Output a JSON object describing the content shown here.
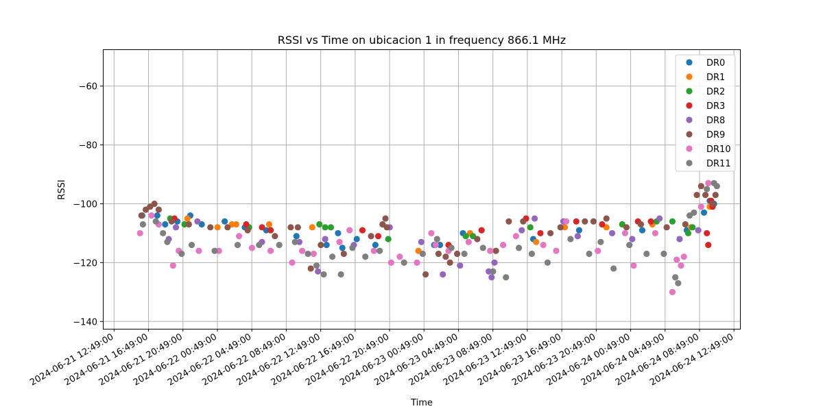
{
  "chart_data": {
    "type": "scatter",
    "title": "RSSI vs Time on ubicacion 1 in frequency 866.1 MHz",
    "xlabel": "Time",
    "ylabel": "RSSI",
    "x_axis_type": "datetime",
    "xlim": [
      "2024-06-21 11:31:00",
      "2024-06-24 13:31:00"
    ],
    "ylim": [
      -142.5,
      -47.5
    ],
    "x_ticks": [
      "2024-06-21 12:49:00",
      "2024-06-21 16:49:00",
      "2024-06-21 20:49:00",
      "2024-06-22 00:49:00",
      "2024-06-22 04:49:00",
      "2024-06-22 08:49:00",
      "2024-06-22 12:49:00",
      "2024-06-22 16:49:00",
      "2024-06-22 20:49:00",
      "2024-06-23 00:49:00",
      "2024-06-23 04:49:00",
      "2024-06-23 08:49:00",
      "2024-06-23 12:49:00",
      "2024-06-23 16:49:00",
      "2024-06-23 20:49:00",
      "2024-06-24 00:49:00",
      "2024-06-24 04:49:00",
      "2024-06-24 08:49:00",
      "2024-06-24 12:49:00"
    ],
    "y_ticks": [
      -140,
      -120,
      -100,
      -80,
      -60
    ],
    "grid": true,
    "legend_position": "top-right",
    "series": [
      {
        "name": "DR0",
        "color": "#1f77b4",
        "points": [
          [
            "2024-06-21 16:05:00",
            -104
          ],
          [
            "2024-06-21 17:50:00",
            -104
          ],
          [
            "2024-06-21 18:45:00",
            -107
          ],
          [
            "2024-06-21 20:10:00",
            -106
          ],
          [
            "2024-06-21 21:40:00",
            -104
          ],
          [
            "2024-06-21 23:00:00",
            -107
          ],
          [
            "2024-06-22 01:40:00",
            -106
          ],
          [
            "2024-06-22 04:00:00",
            -108
          ],
          [
            "2024-06-22 06:30:00",
            -109
          ],
          [
            "2024-06-22 10:00:00",
            -111
          ],
          [
            "2024-06-22 13:30:00",
            -114
          ],
          [
            "2024-06-22 14:50:00",
            -110
          ],
          [
            "2024-06-22 15:20:00",
            -115
          ],
          [
            "2024-06-22 17:00:00",
            -112
          ],
          [
            "2024-06-22 19:10:00",
            -114
          ],
          [
            "2024-06-23 02:00:00",
            -114
          ],
          [
            "2024-06-23 02:40:00",
            -114
          ],
          [
            "2024-06-23 05:20:00",
            -110
          ],
          [
            "2024-06-23 13:30:00",
            -112
          ],
          [
            "2024-06-23 18:50:00",
            -109
          ],
          [
            "2024-06-24 02:10:00",
            -109
          ],
          [
            "2024-06-24 07:20:00",
            -109
          ],
          [
            "2024-06-24 09:20:00",
            -103
          ],
          [
            "2024-06-24 10:00:00",
            -99
          ],
          [
            "2024-06-24 10:30:00",
            -100
          ]
        ]
      },
      {
        "name": "DR1",
        "color": "#ff7f0e",
        "points": [
          [
            "2024-06-21 21:20:00",
            -105
          ],
          [
            "2024-06-22 00:50:00",
            -108
          ],
          [
            "2024-06-22 02:30:00",
            -107
          ],
          [
            "2024-06-22 03:00:00",
            -107
          ],
          [
            "2024-06-22 06:50:00",
            -107
          ],
          [
            "2024-06-22 11:50:00",
            -108
          ],
          [
            "2024-06-23 00:10:00",
            -116
          ],
          [
            "2024-06-23 06:10:00",
            -110
          ],
          [
            "2024-06-23 13:50:00",
            -113
          ],
          [
            "2024-06-23 17:10:00",
            -108
          ],
          [
            "2024-06-23 22:00:00",
            -108
          ],
          [
            "2024-06-24 03:20:00",
            -107
          ],
          [
            "2024-06-24 07:50:00",
            -108
          ],
          [
            "2024-06-24 10:00:00",
            -101
          ]
        ]
      },
      {
        "name": "DR2",
        "color": "#2ca02c",
        "points": [
          [
            "2024-06-21 19:20:00",
            -105
          ],
          [
            "2024-06-21 21:00:00",
            -107
          ],
          [
            "2024-06-22 04:30:00",
            -108
          ],
          [
            "2024-06-22 12:40:00",
            -107
          ],
          [
            "2024-06-22 13:20:00",
            -108
          ],
          [
            "2024-06-22 14:00:00",
            -108
          ],
          [
            "2024-06-22 20:40:00",
            -112
          ],
          [
            "2024-06-23 05:40:00",
            -111
          ],
          [
            "2024-06-23 06:30:00",
            -111
          ],
          [
            "2024-06-23 13:10:00",
            -108
          ],
          [
            "2024-06-23 23:50:00",
            -107
          ],
          [
            "2024-06-24 03:50:00",
            -106
          ],
          [
            "2024-06-24 05:40:00",
            -106
          ],
          [
            "2024-06-24 07:30:00",
            -110
          ],
          [
            "2024-06-24 08:00:00",
            -108
          ]
        ]
      },
      {
        "name": "DR3",
        "color": "#d62728",
        "points": [
          [
            "2024-06-21 19:50:00",
            -105
          ],
          [
            "2024-06-22 04:10:00",
            -107
          ],
          [
            "2024-06-22 06:00:00",
            -108
          ],
          [
            "2024-06-22 07:00:00",
            -109
          ],
          [
            "2024-06-22 17:40:00",
            -109
          ],
          [
            "2024-06-22 19:30:00",
            -111
          ],
          [
            "2024-06-23 03:40:00",
            -114
          ],
          [
            "2024-06-23 07:30:00",
            -109
          ],
          [
            "2024-06-23 12:40:00",
            -105
          ],
          [
            "2024-06-23 14:20:00",
            -110
          ],
          [
            "2024-06-23 18:30:00",
            -106
          ],
          [
            "2024-06-23 21:30:00",
            -107
          ],
          [
            "2024-06-24 01:40:00",
            -106
          ],
          [
            "2024-06-24 03:10:00",
            -106
          ],
          [
            "2024-06-24 09:40:00",
            -110
          ],
          [
            "2024-06-24 09:50:00",
            -114
          ],
          [
            "2024-06-24 10:10:00",
            -99
          ],
          [
            "2024-06-24 10:20:00",
            -101
          ]
        ]
      },
      {
        "name": "DR8",
        "color": "#9467bd",
        "points": [
          [
            "2024-06-21 19:10:00",
            -112
          ],
          [
            "2024-06-21 20:00:00",
            -108
          ],
          [
            "2024-06-21 22:30:00",
            -106
          ],
          [
            "2024-06-22 06:00:00",
            -113
          ],
          [
            "2024-06-22 10:20:00",
            -113
          ],
          [
            "2024-06-22 12:30:00",
            -123
          ],
          [
            "2024-06-22 13:20:00",
            -112
          ],
          [
            "2024-06-22 16:40:00",
            -114
          ],
          [
            "2024-06-22 20:50:00",
            -108
          ],
          [
            "2024-06-23 00:30:00",
            -113
          ],
          [
            "2024-06-23 03:00:00",
            -124
          ],
          [
            "2024-06-23 05:00:00",
            -121
          ],
          [
            "2024-06-23 08:20:00",
            -123
          ],
          [
            "2024-06-23 08:40:00",
            -125
          ],
          [
            "2024-06-23 09:00:00",
            -120
          ],
          [
            "2024-06-23 12:10:00",
            -109
          ],
          [
            "2024-06-23 13:40:00",
            -105
          ],
          [
            "2024-06-23 17:00:00",
            -106
          ],
          [
            "2024-06-23 18:40:00",
            -111
          ],
          [
            "2024-06-23 22:40:00",
            -110
          ],
          [
            "2024-06-24 01:00:00",
            -112
          ],
          [
            "2024-06-24 04:10:00",
            -105
          ],
          [
            "2024-06-24 06:30:00",
            -112
          ],
          [
            "2024-06-24 08:40:00",
            -109
          ]
        ]
      },
      {
        "name": "DR9",
        "color": "#8c564b",
        "points": [
          [
            "2024-06-21 16:00:00",
            -104
          ],
          [
            "2024-06-21 16:30:00",
            -102
          ],
          [
            "2024-06-21 17:00:00",
            -101
          ],
          [
            "2024-06-21 17:30:00",
            -100
          ],
          [
            "2024-06-21 18:00:00",
            -102
          ],
          [
            "2024-06-21 19:30:00",
            -106
          ],
          [
            "2024-06-21 21:30:00",
            -107
          ],
          [
            "2024-06-22 00:00:00",
            -108
          ],
          [
            "2024-06-22 02:00:00",
            -108
          ],
          [
            "2024-06-22 04:20:00",
            -109
          ],
          [
            "2024-06-22 07:30:00",
            -111
          ],
          [
            "2024-06-22 09:20:00",
            -108
          ],
          [
            "2024-06-22 10:10:00",
            -108
          ],
          [
            "2024-06-22 11:40:00",
            -122
          ],
          [
            "2024-06-22 12:50:00",
            -114
          ],
          [
            "2024-06-22 15:30:00",
            -117
          ],
          [
            "2024-06-22 18:40:00",
            -111
          ],
          [
            "2024-06-22 20:00:00",
            -107
          ],
          [
            "2024-06-22 20:20:00",
            -105
          ],
          [
            "2024-06-22 20:30:00",
            -108
          ],
          [
            "2024-06-23 01:00:00",
            -124
          ],
          [
            "2024-06-23 02:30:00",
            -117
          ],
          [
            "2024-06-23 03:20:00",
            -118
          ],
          [
            "2024-06-23 03:50:00",
            -120
          ],
          [
            "2024-06-23 04:40:00",
            -117
          ],
          [
            "2024-06-23 07:00:00",
            -112
          ],
          [
            "2024-06-23 09:10:00",
            -116
          ],
          [
            "2024-06-23 10:40:00",
            -106
          ],
          [
            "2024-06-23 12:20:00",
            -106
          ],
          [
            "2024-06-23 15:30:00",
            -110
          ],
          [
            "2024-06-23 16:40:00",
            -108
          ],
          [
            "2024-06-23 19:30:00",
            -106
          ],
          [
            "2024-06-23 20:30:00",
            -106
          ],
          [
            "2024-06-23 22:00:00",
            -105
          ],
          [
            "2024-06-24 00:20:00",
            -108
          ],
          [
            "2024-06-24 02:00:00",
            -107
          ],
          [
            "2024-06-24 05:00:00",
            -108
          ],
          [
            "2024-06-24 07:10:00",
            -107
          ],
          [
            "2024-06-24 08:30:00",
            -97
          ],
          [
            "2024-06-24 09:00:00",
            -94
          ],
          [
            "2024-06-24 09:30:00",
            -97
          ],
          [
            "2024-06-24 10:20:00",
            -100
          ],
          [
            "2024-06-24 10:40:00",
            -97
          ]
        ]
      },
      {
        "name": "DR10",
        "color": "#e377c2",
        "points": [
          [
            "2024-06-21 15:50:00",
            -110
          ],
          [
            "2024-06-21 17:10:00",
            -104
          ],
          [
            "2024-06-21 18:00:00",
            -107
          ],
          [
            "2024-06-21 19:40:00",
            -121
          ],
          [
            "2024-06-21 20:20:00",
            -116
          ],
          [
            "2024-06-21 22:40:00",
            -116
          ],
          [
            "2024-06-22 01:00:00",
            -116
          ],
          [
            "2024-06-22 03:20:00",
            -111
          ],
          [
            "2024-06-22 04:50:00",
            -115
          ],
          [
            "2024-06-22 07:00:00",
            -116
          ],
          [
            "2024-06-22 09:30:00",
            -120
          ],
          [
            "2024-06-22 10:40:00",
            -116
          ],
          [
            "2024-06-22 12:00:00",
            -117
          ],
          [
            "2024-06-22 15:00:00",
            -113
          ],
          [
            "2024-06-22 16:10:00",
            -109
          ],
          [
            "2024-06-22 19:00:00",
            -116
          ],
          [
            "2024-06-22 21:00:00",
            -120
          ],
          [
            "2024-06-22 22:00:00",
            -118
          ],
          [
            "2024-06-23 00:00:00",
            -120
          ],
          [
            "2024-06-23 01:40:00",
            -110
          ],
          [
            "2024-06-23 02:10:00",
            -114
          ],
          [
            "2024-06-23 03:40:00",
            -116
          ],
          [
            "2024-06-23 06:00:00",
            -113
          ],
          [
            "2024-06-23 08:30:00",
            -116
          ],
          [
            "2024-06-23 10:00:00",
            -114
          ],
          [
            "2024-06-23 11:30:00",
            -111
          ],
          [
            "2024-06-23 14:40:00",
            -114
          ],
          [
            "2024-06-23 16:10:00",
            -116
          ],
          [
            "2024-06-23 17:20:00",
            -106
          ],
          [
            "2024-06-23 21:00:00",
            -116
          ],
          [
            "2024-06-24 00:10:00",
            -110
          ],
          [
            "2024-06-24 01:10:00",
            -121
          ],
          [
            "2024-06-24 03:40:00",
            -110
          ],
          [
            "2024-06-24 05:40:00",
            -130
          ],
          [
            "2024-06-24 06:10:00",
            -119
          ],
          [
            "2024-06-24 06:40:00",
            -121
          ],
          [
            "2024-06-24 07:00:00",
            -118
          ],
          [
            "2024-06-24 09:00:00",
            -101
          ],
          [
            "2024-06-24 09:50:00",
            -93
          ]
        ]
      },
      {
        "name": "DR11",
        "color": "#7f7f7f",
        "points": [
          [
            "2024-06-21 16:10:00",
            -107
          ],
          [
            "2024-06-21 17:40:00",
            -106
          ],
          [
            "2024-06-21 18:30:00",
            -110
          ],
          [
            "2024-06-21 19:00:00",
            -113
          ],
          [
            "2024-06-21 20:40:00",
            -117
          ],
          [
            "2024-06-21 21:50:00",
            -114
          ],
          [
            "2024-06-22 00:30:00",
            -116
          ],
          [
            "2024-06-22 03:10:00",
            -114
          ],
          [
            "2024-06-22 05:40:00",
            -114
          ],
          [
            "2024-06-22 08:00:00",
            -114
          ],
          [
            "2024-06-22 09:50:00",
            -113
          ],
          [
            "2024-06-22 11:20:00",
            -117
          ],
          [
            "2024-06-22 12:20:00",
            -121
          ],
          [
            "2024-06-22 13:10:00",
            -124
          ],
          [
            "2024-06-22 14:10:00",
            -118
          ],
          [
            "2024-06-22 15:10:00",
            -124
          ],
          [
            "2024-06-22 16:30:00",
            -115
          ],
          [
            "2024-06-22 18:00:00",
            -118
          ],
          [
            "2024-06-22 19:40:00",
            -116
          ],
          [
            "2024-06-22 22:30:00",
            -120
          ],
          [
            "2024-06-23 00:40:00",
            -117
          ],
          [
            "2024-06-23 02:20:00",
            -112
          ],
          [
            "2024-06-23 04:00:00",
            -115
          ],
          [
            "2024-06-23 05:30:00",
            -117
          ],
          [
            "2024-06-23 07:40:00",
            -115
          ],
          [
            "2024-06-23 08:50:00",
            -123
          ],
          [
            "2024-06-23 10:20:00",
            -125
          ],
          [
            "2024-06-23 11:50:00",
            -115
          ],
          [
            "2024-06-23 13:20:00",
            -117
          ],
          [
            "2024-06-23 15:10:00",
            -120
          ],
          [
            "2024-06-23 17:50:00",
            -112
          ],
          [
            "2024-06-23 20:00:00",
            -117
          ],
          [
            "2024-06-23 21:20:00",
            -113
          ],
          [
            "2024-06-23 22:50:00",
            -122
          ],
          [
            "2024-06-24 00:40:00",
            -114
          ],
          [
            "2024-06-24 02:40:00",
            -117
          ],
          [
            "2024-06-24 04:40:00",
            -117
          ],
          [
            "2024-06-24 06:00:00",
            -125
          ],
          [
            "2024-06-24 06:20:00",
            -127
          ],
          [
            "2024-06-24 07:40:00",
            -104
          ],
          [
            "2024-06-24 08:10:00",
            -103
          ],
          [
            "2024-06-24 09:40:00",
            -95
          ],
          [
            "2024-06-24 10:30:00",
            -93
          ],
          [
            "2024-06-24 10:50:00",
            -94
          ]
        ]
      }
    ]
  }
}
